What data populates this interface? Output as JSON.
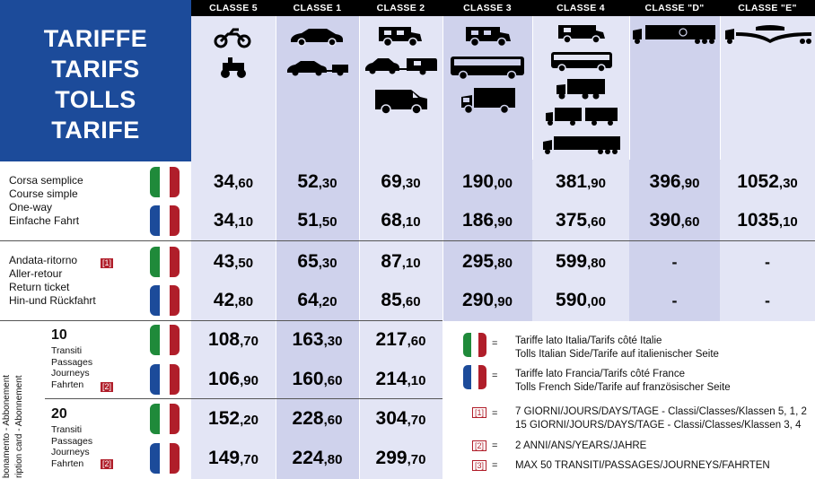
{
  "title_lines": [
    "TARIFFE",
    "TARIFS",
    "TOLLS",
    "TARIFE"
  ],
  "columns": [
    "CLASSE 5",
    "CLASSE 1",
    "CLASSE 2",
    "CLASSE 3",
    "CLASSE 4",
    "CLASSE \"D\"",
    "CLASSE \"E\""
  ],
  "vehicle_icons": {
    "classe5": [
      "motorcycle-icon",
      "sidecar-icon"
    ],
    "classe1": [
      "car-icon",
      "car-with-trailer-icon"
    ],
    "classe2": [
      "camper-van-icon",
      "car-with-caravan-icon",
      "van-icon"
    ],
    "classe3": [
      "motorhome-icon",
      "bus-icon",
      "box-truck-icon"
    ],
    "classe4": [
      "motorhome-large-icon",
      "coach-icon",
      "truck-icon",
      "truck-trailer-icon",
      "articulated-truck-icon"
    ],
    "classe_d": [
      "oversize-truck-icon"
    ],
    "classe_e": [
      "special-transport-icon"
    ]
  },
  "one_way": {
    "labels": [
      "Corsa semplice",
      "Course simple",
      "One-way",
      "Einfache Fahrt"
    ],
    "it": [
      [
        "34",
        ",60"
      ],
      [
        "52",
        ",30"
      ],
      [
        "69",
        ",30"
      ],
      [
        "190",
        ",00"
      ],
      [
        "381",
        ",90"
      ],
      [
        "396",
        ",90"
      ],
      [
        "1052",
        ",30"
      ]
    ],
    "fr": [
      [
        "34",
        ",10"
      ],
      [
        "51",
        ",50"
      ],
      [
        "68",
        ",10"
      ],
      [
        "186",
        ",90"
      ],
      [
        "375",
        ",60"
      ],
      [
        "390",
        ",60"
      ],
      [
        "1035",
        ",10"
      ]
    ]
  },
  "return": {
    "labels": [
      "Andata-ritorno",
      "Aller-retour",
      "Return ticket",
      "Hin-und Rückfahrt"
    ],
    "note": "[1]",
    "it": [
      [
        "43",
        ",50"
      ],
      [
        "65",
        ",30"
      ],
      [
        "87",
        ",10"
      ],
      [
        "295",
        ",80"
      ],
      [
        "599",
        ",80"
      ],
      "-",
      "-"
    ],
    "fr": [
      [
        "42",
        ",80"
      ],
      [
        "64",
        ",20"
      ],
      [
        "85",
        ",60"
      ],
      [
        "290",
        ",90"
      ],
      [
        "590",
        ",00"
      ],
      "-",
      "-"
    ]
  },
  "subscription": {
    "side_label_1": "bonamento - Abbonement",
    "side_label_2": "ription card - Abonnement",
    "ten": {
      "count": "10",
      "sub": [
        "Transiti",
        "Passages",
        "Journeys",
        "Fahrten"
      ],
      "note": "[2]",
      "it": [
        [
          "108",
          ",70"
        ],
        [
          "163",
          ",30"
        ],
        [
          "217",
          ",60"
        ]
      ],
      "fr": [
        [
          "106",
          ",90"
        ],
        [
          "160",
          ",60"
        ],
        [
          "214",
          ",10"
        ]
      ]
    },
    "twenty": {
      "count": "20",
      "sub": [
        "Transiti",
        "Passages",
        "Journeys",
        "Fahrten"
      ],
      "note": "[2]",
      "it": [
        [
          "152",
          ",20"
        ],
        [
          "228",
          ",60"
        ],
        [
          "304",
          ",70"
        ]
      ],
      "fr": [
        [
          "149",
          ",70"
        ],
        [
          "224",
          ",80"
        ],
        [
          "299",
          ",70"
        ]
      ]
    }
  },
  "legend": {
    "eq": "=",
    "italy": [
      "Tariffe lato Italia/Tarifs côté Italie",
      "Tolls Italian Side/Tarife auf italienischer Seite"
    ],
    "france": [
      "Tariffe lato Francia/Tarifs côté France",
      "Tolls French Side/Tarife auf französischer Seite"
    ],
    "n1_label": "[1]",
    "n1": [
      "7 GIORNI/JOURS/DAYS/TAGE - Classi/Classes/Klassen 5, 1, 2",
      "15 GIORNI/JOURS/DAYS/TAGE - Classi/Classes/Klassen 3, 4"
    ],
    "n2_label": "[2]",
    "n2": "2 ANNI/ANS/YEARS/JAHRE",
    "n3_label": "[3]",
    "n3": "MAX 50 TRANSITI/PASSAGES/JOURNEYS/FAHRTEN"
  },
  "colors": {
    "blue": "#1c4b9a",
    "red": "#b01e2a",
    "italy_green": "#1f8a3a",
    "france_blue": "#1c4b9a",
    "col_light": "#e3e5f5",
    "col_dark": "#cfd2ec"
  }
}
